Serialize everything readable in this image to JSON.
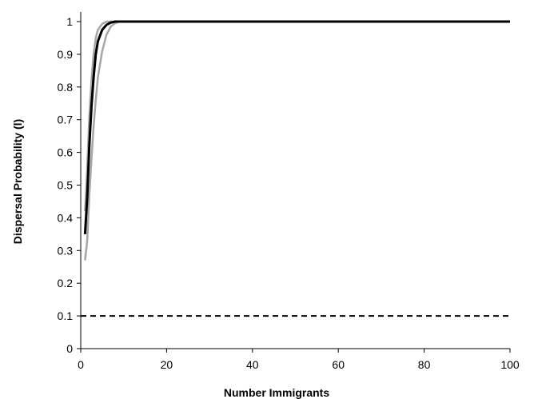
{
  "chart_data": {
    "type": "line",
    "title": "",
    "xlabel": "Number Immigrants",
    "ylabel": "Dispersal Probability (l)",
    "xlim": [
      0,
      100
    ],
    "ylim": [
      0,
      1
    ],
    "x_ticks": [
      0,
      20,
      40,
      60,
      80,
      100
    ],
    "y_ticks": [
      0,
      0.1,
      0.2,
      0.3,
      0.4,
      0.5,
      0.6,
      0.7,
      0.8,
      0.9,
      1
    ],
    "x_tick_labels": [
      "0",
      "20",
      "40",
      "60",
      "80",
      "100"
    ],
    "y_tick_labels": [
      "0",
      "0.1",
      "0.2",
      "0.3",
      "0.4",
      "0.5",
      "0.6",
      "0.7",
      "0.8",
      "0.9",
      "1"
    ],
    "grid": false,
    "legend": "none",
    "series": [
      {
        "color": "#000000",
        "style": "solid",
        "points": [
          [
            1,
            0.35
          ],
          [
            1.5,
            0.46
          ],
          [
            2,
            0.62
          ],
          [
            2.5,
            0.74
          ],
          [
            3,
            0.83
          ],
          [
            3.5,
            0.9
          ],
          [
            4,
            0.94
          ],
          [
            5,
            0.975
          ],
          [
            6,
            0.99
          ],
          [
            7,
            0.997
          ],
          [
            8,
            1.0
          ],
          [
            10,
            1.0
          ],
          [
            20,
            1.0
          ],
          [
            40,
            1.0
          ],
          [
            60,
            1.0
          ],
          [
            80,
            1.0
          ],
          [
            100,
            1.0
          ]
        ]
      },
      {
        "color": "#a6a6a6",
        "style": "solid",
        "points": [
          [
            1,
            0.27
          ],
          [
            1.5,
            0.33
          ],
          [
            2,
            0.47
          ],
          [
            2.5,
            0.58
          ],
          [
            3,
            0.68
          ],
          [
            3.5,
            0.76
          ],
          [
            4,
            0.83
          ],
          [
            5,
            0.91
          ],
          [
            6,
            0.96
          ],
          [
            7,
            0.985
          ],
          [
            8,
            0.995
          ],
          [
            9,
            1.0
          ],
          [
            20,
            1.0
          ],
          [
            40,
            1.0
          ],
          [
            60,
            1.0
          ],
          [
            80,
            1.0
          ],
          [
            100,
            1.0
          ]
        ]
      },
      {
        "color": "#a6a6a6",
        "style": "solid",
        "points": [
          [
            1,
            0.42
          ],
          [
            1.5,
            0.55
          ],
          [
            2,
            0.71
          ],
          [
            2.5,
            0.82
          ],
          [
            3,
            0.9
          ],
          [
            3.5,
            0.95
          ],
          [
            4,
            0.975
          ],
          [
            5,
            0.993
          ],
          [
            6,
            1.0
          ],
          [
            20,
            1.0
          ],
          [
            40,
            1.0
          ],
          [
            60,
            1.0
          ],
          [
            80,
            1.0
          ],
          [
            100,
            1.0
          ]
        ]
      },
      {
        "color": "#000000",
        "style": "dashed",
        "points": [
          [
            0,
            0.1
          ],
          [
            100,
            0.1
          ]
        ]
      }
    ]
  }
}
